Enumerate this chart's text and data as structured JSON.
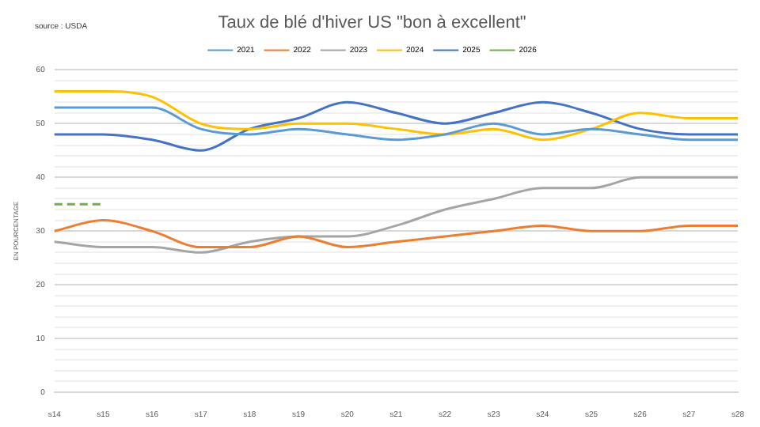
{
  "chart_data": {
    "type": "line",
    "title": "Taux de blé d'hiver US \"bon à excellent\"",
    "ylabel": "EN POURCENTAGE",
    "annotations": [
      "source : USDA"
    ],
    "categories": [
      "s14",
      "s15",
      "s16",
      "s17",
      "s18",
      "s19",
      "s20",
      "s21",
      "s22",
      "s23",
      "s24",
      "s25",
      "s26",
      "s27",
      "s28"
    ],
    "series": [
      {
        "name": "2021",
        "color": "#5b9bd5",
        "values": [
          53,
          53,
          53,
          49,
          48,
          49,
          48,
          47,
          48,
          50,
          48,
          49,
          48,
          47,
          47
        ]
      },
      {
        "name": "2022",
        "color": "#ed7d31",
        "values": [
          30,
          32,
          30,
          27,
          27,
          29,
          27,
          28,
          29,
          30,
          31,
          30,
          30,
          31,
          31
        ]
      },
      {
        "name": "2023",
        "color": "#a5a5a5",
        "values": [
          28,
          27,
          27,
          26,
          28,
          29,
          29,
          31,
          34,
          36,
          38,
          38,
          40,
          40,
          40
        ]
      },
      {
        "name": "2024",
        "color": "#ffc000",
        "values": [
          56,
          56,
          55,
          50,
          49,
          50,
          50,
          49,
          48,
          49,
          47,
          49,
          52,
          51,
          51
        ]
      },
      {
        "name": "2025",
        "color": "#4472c4",
        "values": [
          48,
          48,
          47,
          45,
          49,
          51,
          54,
          52,
          50,
          52,
          54,
          52,
          49,
          48,
          48
        ]
      },
      {
        "name": "2026",
        "color": "#70ad47",
        "line_style": "dashed",
        "values": [
          35,
          35,
          null,
          null,
          null,
          null,
          null,
          null,
          null,
          null,
          null,
          null,
          null,
          null,
          null
        ]
      }
    ],
    "ylim": [
      0,
      60
    ],
    "yticks": [
      0,
      {
        "value": 2,
        "label": null
      },
      {
        "value": 4,
        "label": null
      },
      {
        "value": 6,
        "label": null
      },
      {
        "value": 8,
        "label": null
      },
      10,
      {
        "value": 12,
        "label": null
      },
      {
        "value": 14,
        "label": null
      },
      {
        "value": 16,
        "label": null
      },
      {
        "value": 18,
        "label": null
      },
      20,
      {
        "value": 22,
        "label": null
      },
      {
        "value": 24,
        "label": null
      },
      {
        "value": 26,
        "label": null
      },
      {
        "value": 28,
        "label": null
      },
      30,
      {
        "value": 32,
        "label": null
      },
      {
        "value": 34,
        "label": null
      },
      {
        "value": 36,
        "label": null
      },
      {
        "value": 38,
        "label": null
      },
      40,
      {
        "value": 42,
        "label": null
      },
      {
        "value": 44,
        "label": null
      },
      {
        "value": 46,
        "label": null
      },
      {
        "value": 48,
        "label": null
      },
      50,
      {
        "value": 52,
        "label": null
      },
      {
        "value": 54,
        "label": null
      },
      {
        "value": 56,
        "label": null
      },
      {
        "value": 58,
        "label": null
      },
      60
    ],
    "grid": "y",
    "legend": "top",
    "marker": "none",
    "line_style": "solid"
  }
}
